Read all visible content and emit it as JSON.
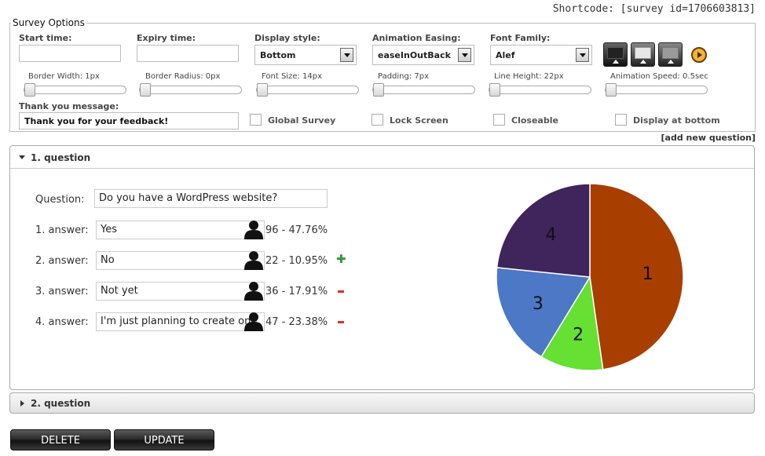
{
  "shortcode": "Shortcode: [survey id=1706603813]",
  "options": {
    "legend": "Survey Options",
    "start_time": {
      "label": "Start time:",
      "value": ""
    },
    "expiry_time": {
      "label": "Expiry time:",
      "value": ""
    },
    "display_style": {
      "label": "Display style:",
      "value": "Bottom"
    },
    "animation_easing": {
      "label": "Animation Easing:",
      "value": "easeInOutBack"
    },
    "font_family": {
      "label": "Font Family:",
      "value": "Alef"
    },
    "sliders": [
      {
        "label": "Border Width: 1px",
        "value": 1
      },
      {
        "label": "Border Radius: 0px",
        "value": 0
      },
      {
        "label": "Font Size: 14px",
        "value": 14
      },
      {
        "label": "Padding: 7px",
        "value": 7
      },
      {
        "label": "Line Height: 22px",
        "value": 22
      },
      {
        "label": "Animation Speed: 0.5sec",
        "value": 0.5
      }
    ],
    "thank_you": {
      "label": "Thank you message:",
      "value": "Thank you for your feedback!"
    },
    "checkboxes": [
      {
        "label": "Global Survey",
        "checked": false
      },
      {
        "label": "Lock Screen",
        "checked": false
      },
      {
        "label": "Closeable",
        "checked": false
      },
      {
        "label": "Display at bottom",
        "checked": false
      }
    ],
    "style_icons": [
      "style-dark-icon",
      "style-light-icon",
      "style-gray-icon"
    ],
    "play_icon": "play-icon"
  },
  "add_question": "[add new question]",
  "question1": {
    "title": "1. question",
    "question_label": "Question:",
    "question_text": "Do you have a WordPress website?",
    "answers": [
      {
        "label": "1. answer:",
        "text": "Yes",
        "stat": "96 - 47.76%"
      },
      {
        "label": "2. answer:",
        "text": "No",
        "stat": "22 - 10.95%"
      },
      {
        "label": "3. answer:",
        "text": "Not yet",
        "stat": "36 - 17.91%"
      },
      {
        "label": "4. answer:",
        "text": "I'm just planning to create one",
        "stat": "47 - 23.38%"
      }
    ]
  },
  "question2": {
    "title": "2. question"
  },
  "buttons": {
    "delete": "DELETE",
    "update": "UPDATE"
  },
  "chart_data": {
    "type": "pie",
    "categories": [
      "1",
      "2",
      "3",
      "4"
    ],
    "values": [
      96,
      22,
      36,
      47
    ],
    "colors": [
      "#a83f00",
      "#66e033",
      "#4c78c5",
      "#40245c"
    ]
  }
}
